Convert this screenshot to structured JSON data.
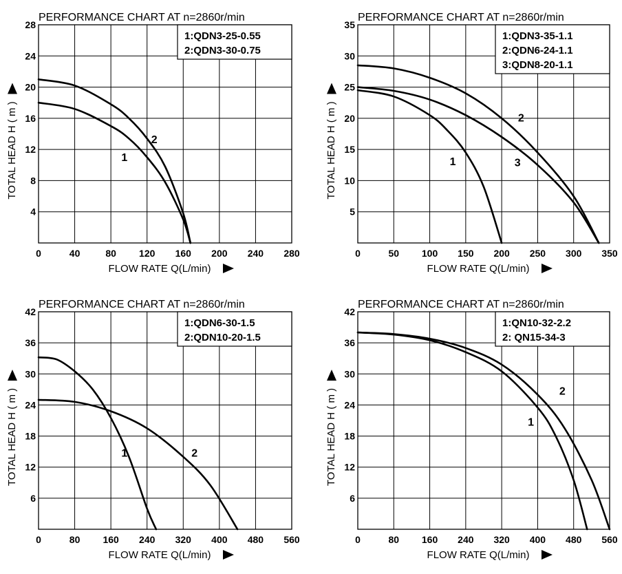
{
  "chart_data": [
    {
      "type": "line",
      "title": "PERFORMANCE  CHART  AT  n=2860r/min",
      "xlabel": "FLOW RATE Q(L/min)",
      "ylabel": "TOTAL HEAD  H ( m )",
      "xlim": [
        0,
        280
      ],
      "ylim": [
        0,
        28
      ],
      "xticks": [
        "0",
        "40",
        "80",
        "120",
        "160",
        "200",
        "240",
        "280"
      ],
      "yticks": [
        "4",
        "8",
        "12",
        "16",
        "20",
        "24",
        "28"
      ],
      "grid": true,
      "legend": [
        "1:QDN3-25-0.55",
        "2:QDN3-30-0.75"
      ],
      "series": [
        {
          "label": "1",
          "x": [
            0,
            40,
            80,
            100,
            120,
            140,
            160,
            168
          ],
          "y": [
            18,
            17.2,
            15,
            13.4,
            11,
            7.8,
            3,
            0
          ]
        },
        {
          "label": "2",
          "x": [
            0,
            40,
            80,
            100,
            120,
            140,
            160,
            168
          ],
          "y": [
            21,
            20.2,
            17.8,
            16,
            13.4,
            9.8,
            3.8,
            0
          ]
        }
      ],
      "curve_labels": [
        {
          "text": "1",
          "x": 95,
          "y": 10.5
        },
        {
          "text": "2",
          "x": 128,
          "y": 12.8
        }
      ]
    },
    {
      "type": "line",
      "title": "PERFORMANCE  CHART  AT  n=2860r/min",
      "xlabel": "FLOW RATE Q(L/min)",
      "ylabel": "TOTAL HEAD  H ( m )",
      "xlim": [
        0,
        350
      ],
      "ylim": [
        0,
        35
      ],
      "xticks": [
        "0",
        "50",
        "100",
        "150",
        "200",
        "250",
        "300",
        "350"
      ],
      "yticks": [
        "5",
        "10",
        "15",
        "20",
        "25",
        "30",
        "35"
      ],
      "grid": true,
      "legend": [
        "1:QDN3-35-1.1",
        "2:QDN6-24-1.1",
        "3:QDN8-20-1.1"
      ],
      "series": [
        {
          "label": "1",
          "x": [
            0,
            50,
            100,
            125,
            150,
            175,
            200
          ],
          "y": [
            24.5,
            23.5,
            20.5,
            18,
            14.5,
            9,
            0
          ]
        },
        {
          "label": "2",
          "x": [
            0,
            50,
            100,
            150,
            200,
            250,
            300,
            335
          ],
          "y": [
            28.5,
            28,
            26.5,
            24,
            20,
            14.5,
            7.5,
            0
          ]
        },
        {
          "label": "3",
          "x": [
            0,
            50,
            100,
            150,
            200,
            250,
            300,
            335
          ],
          "y": [
            25,
            24.4,
            23,
            20.5,
            17,
            12.5,
            6.5,
            0
          ]
        }
      ],
      "curve_labels": [
        {
          "text": "1",
          "x": 132,
          "y": 12.5
        },
        {
          "text": "2",
          "x": 227,
          "y": 19.5
        },
        {
          "text": "3",
          "x": 222,
          "y": 12.3
        }
      ]
    },
    {
      "type": "line",
      "title": "PERFORMANCE  CHART  AT  n=2860r/min",
      "xlabel": "FLOW RATE Q(L/min)",
      "ylabel": "TOTAL HEAD  H ( m )",
      "xlim": [
        0,
        560
      ],
      "ylim": [
        0,
        42
      ],
      "xticks": [
        "0",
        "80",
        "160",
        "240",
        "320",
        "400",
        "480",
        "560"
      ],
      "yticks": [
        "6",
        "12",
        "18",
        "24",
        "30",
        "36",
        "42"
      ],
      "grid": true,
      "legend": [
        "1:QDN6-30-1.5",
        "2:QDN10-20-1.5"
      ],
      "series": [
        {
          "label": "1",
          "x": [
            0,
            40,
            80,
            120,
            160,
            200,
            240,
            260
          ],
          "y": [
            33.2,
            32.8,
            30.5,
            27,
            21.5,
            14,
            4,
            0
          ]
        },
        {
          "label": "2",
          "x": [
            0,
            80,
            160,
            240,
            320,
            380,
            440
          ],
          "y": [
            25,
            24.6,
            22.8,
            19.5,
            14,
            8.5,
            0
          ]
        }
      ],
      "curve_labels": [
        {
          "text": "1",
          "x": 190,
          "y": 14
        },
        {
          "text": "2",
          "x": 345,
          "y": 14
        }
      ]
    },
    {
      "type": "line",
      "title": "PERFORMANCE  CHART  AT  n=2860r/min",
      "xlabel": "FLOW RATE Q(L/min)",
      "ylabel": "TOTAL HEAD  H ( m )",
      "xlim": [
        0,
        560
      ],
      "ylim": [
        0,
        42
      ],
      "xticks": [
        "0",
        "80",
        "160",
        "240",
        "320",
        "400",
        "480",
        "560"
      ],
      "yticks": [
        "6",
        "12",
        "18",
        "24",
        "30",
        "36",
        "42"
      ],
      "grid": true,
      "legend": [
        "1:QN10-32-2.2",
        "2: QN15-34-3"
      ],
      "series": [
        {
          "label": "1",
          "x": [
            0,
            80,
            160,
            240,
            320,
            400,
            440,
            480,
            510
          ],
          "y": [
            38,
            37.6,
            36.5,
            34.2,
            30.5,
            23.5,
            18,
            9.5,
            0
          ]
        },
        {
          "label": "2",
          "x": [
            0,
            80,
            160,
            240,
            320,
            400,
            460,
            520,
            560
          ],
          "y": [
            38,
            37.7,
            36.8,
            35,
            31.8,
            26,
            19.5,
            9.5,
            0
          ]
        }
      ],
      "curve_labels": [
        {
          "text": "1",
          "x": 385,
          "y": 20
        },
        {
          "text": "2",
          "x": 455,
          "y": 26
        }
      ]
    }
  ]
}
